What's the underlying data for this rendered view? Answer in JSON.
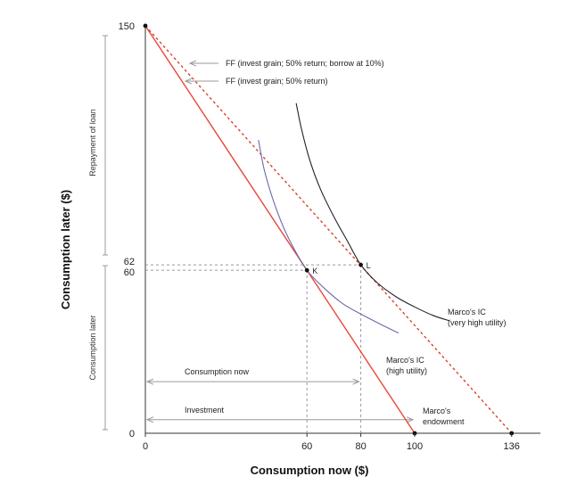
{
  "chart_data": {
    "type": "line",
    "title": "",
    "xlabel": "Consumption now ($)",
    "ylabel": "Consumption later ($)",
    "xlim": [
      0,
      150
    ],
    "ylim": [
      0,
      150
    ],
    "x_ticks": [
      0,
      60,
      80,
      100,
      136
    ],
    "y_ticks": [
      0,
      60,
      62,
      150
    ],
    "colors": {
      "ff_solid": "#e8473a",
      "ff_dotted": "#d9432f",
      "ic_high": "#6a6aa8",
      "ic_very_high": "#222222",
      "guides": "#999999",
      "arrows": "#9a9a9a"
    },
    "series": [
      {
        "name": "FF (invest grain; 50% return)",
        "style": "solid",
        "color": "#e8473a",
        "x": [
          0,
          100
        ],
        "y": [
          150,
          0
        ]
      },
      {
        "name": "FF (invest grain; 50% return; borrow at 10%)",
        "style": "dotted",
        "color": "#d9432f",
        "x": [
          0,
          136
        ],
        "y": [
          150,
          0
        ]
      },
      {
        "name": "Marco's IC (high utility)",
        "style": "solid",
        "color": "#6a6aa8",
        "x": [
          42,
          44,
          47,
          51,
          55,
          60,
          66,
          73,
          80,
          87,
          94
        ],
        "y": [
          108,
          97.6,
          87.2,
          76.5,
          68.3,
          60,
          53.8,
          47.9,
          43.9,
          40.3,
          36.9
        ]
      },
      {
        "name": "Marco's IC (very high utility)",
        "style": "solid",
        "color": "#222222",
        "x": [
          56,
          58,
          61,
          65,
          70,
          75,
          80,
          86,
          93,
          100,
          107,
          113
        ],
        "y": [
          121.5,
          111.9,
          100.7,
          89.9,
          79.7,
          70.8,
          62,
          55.5,
          50.3,
          46.5,
          43.3,
          41.4
        ]
      }
    ],
    "points": [
      {
        "label": "K",
        "x": 60,
        "y": 60
      },
      {
        "label": "L",
        "x": 80,
        "y": 62
      },
      {
        "label": "",
        "x": 0,
        "y": 150
      },
      {
        "label": "",
        "x": 100,
        "y": 0
      },
      {
        "label": "",
        "x": 136,
        "y": 0
      }
    ],
    "guides": [
      {
        "from": [
          0,
          62
        ],
        "to": [
          80,
          62
        ]
      },
      {
        "from": [
          0,
          60
        ],
        "to": [
          60,
          60
        ]
      },
      {
        "from": [
          60,
          0
        ],
        "to": [
          60,
          60
        ]
      },
      {
        "from": [
          80,
          0
        ],
        "to": [
          80,
          62
        ]
      }
    ],
    "annotations": {
      "ff_borrow": "FF (invest grain; 50% return; borrow at 10%)",
      "ff_invest": "FF (invest grain; 50% return)",
      "ic_very_high_line1": "Marco's IC",
      "ic_very_high_line2": "(very high utility)",
      "ic_high_line1": "Marco's IC",
      "ic_high_line2": "(high utility)",
      "endowment_line1": "Marco's",
      "endowment_line2": "endowment",
      "consumption_now_arrow": "Consumption now",
      "investment_arrow": "Investment",
      "repayment_side": "Repayment of loan",
      "consumption_later_side": "Consumption later"
    },
    "arrow_spans": [
      {
        "label": "Consumption now",
        "from": 0,
        "to": 80,
        "at_y": 19
      },
      {
        "label": "Investment",
        "from": 0,
        "to": 100,
        "at_y": 5
      }
    ],
    "grid": false,
    "legend": "none"
  }
}
